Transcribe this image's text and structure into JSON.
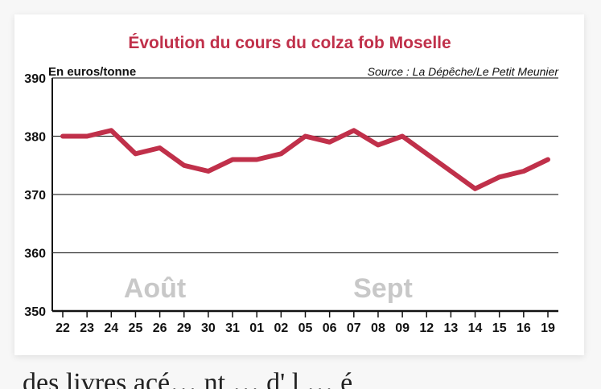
{
  "chart_data": {
    "type": "line",
    "title": "Évolution du cours du colza fob Moselle",
    "ylabel": "En euros/tonne",
    "source": "Source : La Dépêche/Le Petit Meunier",
    "ylim": [
      350,
      390
    ],
    "yticks": [
      350,
      360,
      370,
      380,
      390
    ],
    "categories": [
      "22",
      "23",
      "24",
      "25",
      "26",
      "29",
      "30",
      "31",
      "01",
      "02",
      "05",
      "06",
      "07",
      "08",
      "09",
      "12",
      "13",
      "14",
      "15",
      "16",
      "19"
    ],
    "values": [
      380,
      380,
      381,
      377,
      378,
      375,
      374,
      376,
      376,
      377,
      380,
      379,
      381,
      378.5,
      380,
      377,
      374,
      371,
      373,
      374,
      376
    ],
    "month_labels": [
      {
        "text": "Août",
        "at_index": 3.8
      },
      {
        "text": "Sept",
        "at_index": 13.2
      }
    ],
    "grid": "horizontal",
    "line_color": "#c0304a"
  },
  "bottom_text": "des livres acé…        nt … d'  l … é"
}
